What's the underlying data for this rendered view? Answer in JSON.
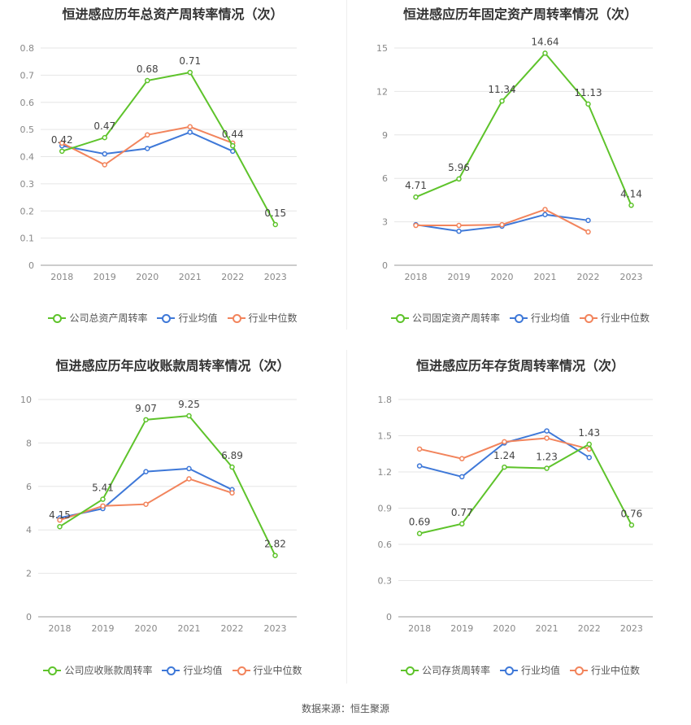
{
  "colors": {
    "company": "#5ec32b",
    "avg": "#3e78d8",
    "median": "#f2845c"
  },
  "legend": {
    "avg": "行业均值",
    "median": "行业中位数"
  },
  "source": "数据来源：恒生聚源",
  "chart_data": [
    {
      "type": "line",
      "title": "恒进感应历年总资产周转率情况（次）",
      "categories": [
        "2018",
        "2019",
        "2020",
        "2021",
        "2022",
        "2023"
      ],
      "ylim": [
        0,
        0.8
      ],
      "yticks": [
        0,
        0.1,
        0.2,
        0.3,
        0.4,
        0.5,
        0.6,
        0.7,
        0.8
      ],
      "ytick_labels": [
        "0",
        "0.1",
        "0.2",
        "0.3",
        "0.4",
        "0.5",
        "0.6",
        "0.7",
        "0.8"
      ],
      "grid": true,
      "legend_position": "bottom",
      "series": [
        {
          "name": "公司总资产周转率",
          "key": "company",
          "values": [
            0.42,
            0.47,
            0.68,
            0.71,
            0.44,
            0.15
          ],
          "labels": [
            "0.42",
            "0.47",
            "0.68",
            "0.71",
            "0.44",
            "0.15"
          ]
        },
        {
          "name": "行业均值",
          "key": "avg",
          "values": [
            0.44,
            0.41,
            0.43,
            0.49,
            0.42,
            null
          ]
        },
        {
          "name": "行业中位数",
          "key": "median",
          "values": [
            0.45,
            0.37,
            0.48,
            0.51,
            0.45,
            null
          ]
        }
      ]
    },
    {
      "type": "line",
      "title": "恒进感应历年固定资产周转率情况（次）",
      "categories": [
        "2018",
        "2019",
        "2020",
        "2021",
        "2022",
        "2023"
      ],
      "ylim": [
        0,
        15
      ],
      "yticks": [
        0,
        3,
        6,
        9,
        12,
        15
      ],
      "ytick_labels": [
        "0",
        "3",
        "6",
        "9",
        "12",
        "15"
      ],
      "grid": true,
      "legend_position": "bottom",
      "series": [
        {
          "name": "公司固定资产周转率",
          "key": "company",
          "values": [
            4.71,
            5.96,
            11.34,
            14.64,
            11.13,
            4.14
          ],
          "labels": [
            "4.71",
            "5.96",
            "11.34",
            "14.64",
            "11.13",
            "4.14"
          ]
        },
        {
          "name": "行业均值",
          "key": "avg",
          "values": [
            2.8,
            2.35,
            2.7,
            3.5,
            3.1,
            null
          ]
        },
        {
          "name": "行业中位数",
          "key": "median",
          "values": [
            2.75,
            2.75,
            2.8,
            3.85,
            2.3,
            null
          ]
        }
      ]
    },
    {
      "type": "line",
      "title": "恒进感应历年应收账款周转率情况（次）",
      "categories": [
        "2018",
        "2019",
        "2020",
        "2021",
        "2022",
        "2023"
      ],
      "ylim": [
        0,
        10
      ],
      "yticks": [
        0,
        2,
        4,
        6,
        8,
        10
      ],
      "ytick_labels": [
        "0",
        "2",
        "4",
        "6",
        "8",
        "10"
      ],
      "grid": true,
      "legend_position": "bottom",
      "series": [
        {
          "name": "公司应收账款周转率",
          "key": "company",
          "values": [
            4.15,
            5.41,
            9.07,
            9.25,
            6.89,
            2.82
          ],
          "labels": [
            "4.15",
            "5.41",
            "9.07",
            "9.25",
            "6.89",
            "2.82"
          ]
        },
        {
          "name": "行业均值",
          "key": "avg",
          "values": [
            4.55,
            4.98,
            6.68,
            6.82,
            5.85,
            null
          ]
        },
        {
          "name": "行业中位数",
          "key": "median",
          "values": [
            4.45,
            5.1,
            5.18,
            6.35,
            5.7,
            null
          ]
        }
      ]
    },
    {
      "type": "line",
      "title": "恒进感应历年存货周转率情况（次）",
      "categories": [
        "2018",
        "2019",
        "2020",
        "2021",
        "2022",
        "2023"
      ],
      "ylim": [
        0,
        1.8
      ],
      "yticks": [
        0,
        0.3,
        0.6,
        0.9,
        1.2,
        1.5,
        1.8
      ],
      "ytick_labels": [
        "0",
        "0.3",
        "0.6",
        "0.9",
        "1.2",
        "1.5",
        "1.8"
      ],
      "grid": true,
      "legend_position": "bottom",
      "series": [
        {
          "name": "公司存货周转率",
          "key": "company",
          "values": [
            0.69,
            0.77,
            1.24,
            1.23,
            1.43,
            0.76
          ],
          "labels": [
            "0.69",
            "0.77",
            "1.24",
            "1.23",
            "1.43",
            "0.76"
          ]
        },
        {
          "name": "行业均值",
          "key": "avg",
          "values": [
            1.25,
            1.16,
            1.44,
            1.54,
            1.32,
            null
          ]
        },
        {
          "name": "行业中位数",
          "key": "median",
          "values": [
            1.39,
            1.31,
            1.45,
            1.48,
            1.39,
            null
          ]
        }
      ]
    }
  ]
}
